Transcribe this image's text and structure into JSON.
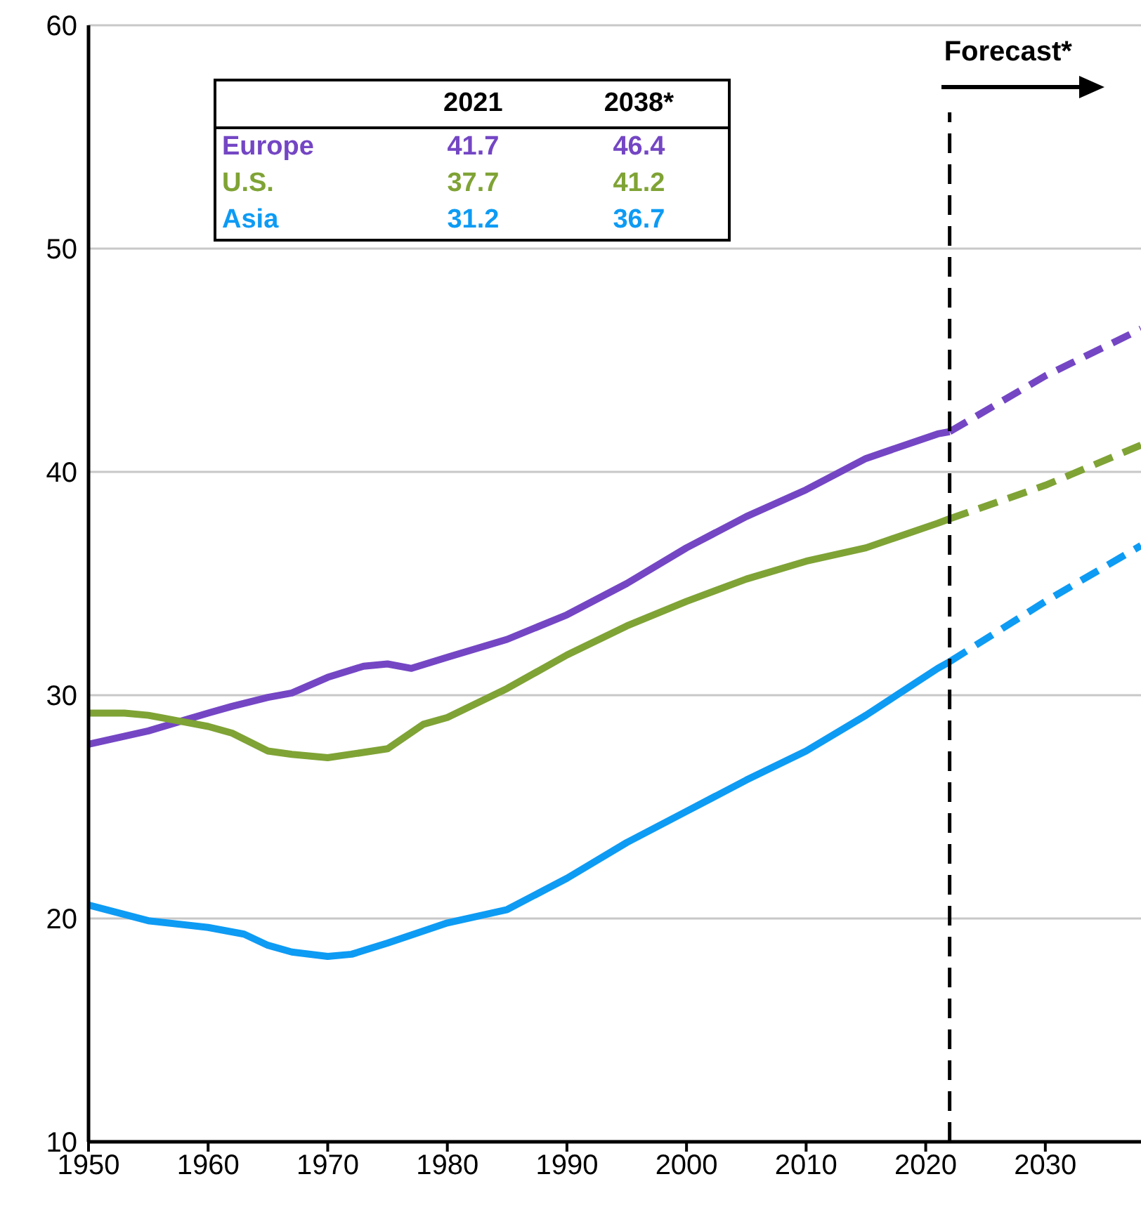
{
  "chart_data": {
    "type": "line",
    "xlim": [
      1950,
      2038
    ],
    "xticks": [
      1950,
      1960,
      1970,
      1980,
      1990,
      2000,
      2010,
      2020,
      2030
    ],
    "ylim": [
      10,
      60
    ],
    "yticks": [
      10,
      20,
      30,
      40,
      50,
      60
    ],
    "grid": "y",
    "annotations": [
      "2021",
      "2038*",
      "41.7",
      "46.4",
      "37.7",
      "41.2",
      "31.2",
      "36.7"
    ],
    "ref_lines": [
      {
        "axis": "x",
        "value": 2022,
        "label": "Forecast*",
        "color": "#000000",
        "line_style": "dashed"
      }
    ],
    "series": [
      {
        "name": "Europe",
        "color": "#7446c4",
        "line_style": "solid",
        "x": [
          1950,
          1955,
          1960,
          1962,
          1965,
          1967,
          1970,
          1973,
          1975,
          1977,
          1980,
          1985,
          1990,
          1995,
          2000,
          2005,
          2010,
          2015,
          2021,
          2022
        ],
        "values": [
          27.8,
          28.4,
          29.2,
          29.5,
          29.9,
          30.1,
          30.8,
          31.3,
          31.4,
          31.2,
          31.7,
          32.5,
          33.6,
          35.0,
          36.6,
          38.0,
          39.2,
          40.6,
          41.7,
          41.8
        ]
      },
      {
        "name": "U.S.",
        "color": "#7fa335",
        "line_style": "solid",
        "x": [
          1950,
          1953,
          1955,
          1958,
          1960,
          1962,
          1965,
          1967,
          1970,
          1975,
          1978,
          1980,
          1985,
          1990,
          1995,
          2000,
          2005,
          2010,
          2015,
          2021,
          2022
        ],
        "values": [
          29.2,
          29.2,
          29.1,
          28.8,
          28.6,
          28.3,
          27.5,
          27.35,
          27.2,
          27.6,
          28.7,
          29.0,
          30.3,
          31.8,
          33.1,
          34.2,
          35.2,
          36.0,
          36.6,
          37.7,
          37.9
        ]
      },
      {
        "name": "Asia",
        "color": "#0d9bf4",
        "line_style": "solid",
        "x": [
          1950,
          1955,
          1960,
          1963,
          1965,
          1967,
          1970,
          1972,
          1975,
          1980,
          1985,
          1990,
          1995,
          2000,
          2005,
          2010,
          2015,
          2021,
          2022
        ],
        "values": [
          20.6,
          19.9,
          19.6,
          19.3,
          18.8,
          18.5,
          18.3,
          18.4,
          18.9,
          19.8,
          20.4,
          21.8,
          23.4,
          24.8,
          26.2,
          27.5,
          29.1,
          31.2,
          31.5
        ]
      },
      {
        "color": "#7446c4",
        "line_style": "dashed",
        "x": [
          2022,
          2030,
          2038
        ],
        "values": [
          41.8,
          44.3,
          46.4
        ]
      },
      {
        "color": "#7fa335",
        "line_style": "dashed",
        "x": [
          2022,
          2030,
          2038
        ],
        "values": [
          37.9,
          39.4,
          41.2
        ]
      },
      {
        "color": "#0d9bf4",
        "line_style": "dashed",
        "x": [
          2022,
          2030,
          2038
        ],
        "values": [
          31.5,
          34.2,
          36.7
        ]
      }
    ]
  }
}
